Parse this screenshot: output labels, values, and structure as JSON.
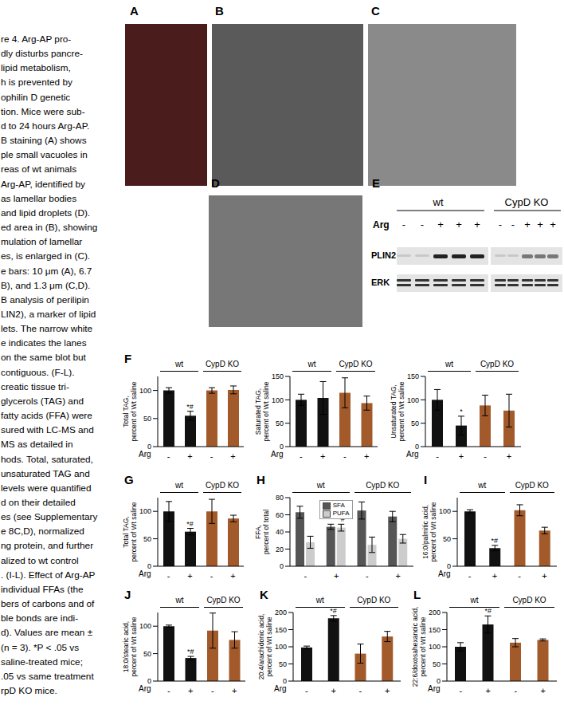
{
  "caption": [
    "re 4. Arg-AP pro-",
    "dly disturbs pancre-",
    "lipid metabolism,",
    "h is prevented by",
    "ophilin D genetic",
    "tion. Mice were sub-",
    "d to 24 hours Arg-AP.",
    "B staining (A) shows",
    "ple small vacuoles in",
    "reas of wt animals",
    "Arg-AP, identified by",
    "as lamellar bodies",
    "and lipid droplets (D).",
    "ed area in (B), showing",
    "mulation of lamellar",
    "es, is enlarged in (C).",
    "e bars: 10 μm (A), 6.7",
    "B), and 1.3 μm (C,D).",
    "B analysis of perilipin",
    "LIN2), a marker of lipid",
    "lets. The narrow white",
    "e indicates the lanes",
    "on the same blot but",
    "contiguous. (F-L).",
    "creatic tissue tri-",
    "glycerols (TAG) and",
    "fatty acids (FFA) were",
    "sured with LC-MS and",
    "MS as detailed in",
    "hods. Total, saturated,",
    "unsaturated TAG and",
    "levels were quantified",
    "d on their detailed",
    "es (see Supplementary",
    "e 8C,D), normalized",
    "ng protein, and further",
    "alized to wt control",
    ". (I-L). Effect of Arg-AP",
    "individual FFAs (the",
    "bers of carbons and of",
    "ble bonds are indi-",
    "d). Values are mean ±",
    "(n = 3). *P < .05 vs",
    "saline-treated mice;",
    ".05 vs same treatment",
    "rpD KO mice."
  ],
  "images": [
    {
      "label": "A"
    },
    {
      "label": "B"
    },
    {
      "label": "C"
    },
    {
      "label": "D"
    }
  ],
  "blot": {
    "label": "E",
    "groups": [
      "wt",
      "CypD KO"
    ],
    "x_label": "Arg",
    "lanes": [
      "-",
      "-",
      "+",
      "+",
      "+",
      "-",
      "-",
      "+",
      "+",
      "+"
    ],
    "rows": [
      "PLIN2",
      "ERK"
    ]
  },
  "chart_data": [
    {
      "type": "bar",
      "panel": "F",
      "ylabel": "Total TAG, percent of Wt saline",
      "groups": [
        "wt",
        "CypD KO"
      ],
      "x_label": "Arg",
      "categories": [
        "-",
        "+",
        "-",
        "+"
      ],
      "values": [
        100,
        55,
        100,
        101
      ],
      "errors": [
        5,
        8,
        5,
        7
      ],
      "colors": [
        "#111111",
        "#111111",
        "#a35a2b",
        "#a35a2b"
      ],
      "annotations": [
        null,
        "*#",
        null,
        null
      ],
      "ylim": [
        0,
        125
      ],
      "yticks": [
        0,
        50,
        100
      ]
    },
    {
      "type": "bar",
      "ylabel": "Saturated TAG, percent of Wt saline",
      "groups": [
        "wt",
        "CypD KO"
      ],
      "x_label": "Arg",
      "categories": [
        "-",
        "+",
        "-",
        "+"
      ],
      "values": [
        100,
        104,
        115,
        93
      ],
      "errors": [
        12,
        35,
        32,
        15
      ],
      "colors": [
        "#111111",
        "#111111",
        "#a35a2b",
        "#a35a2b"
      ],
      "ylim": [
        0,
        150
      ],
      "yticks": [
        0,
        50,
        100,
        150
      ]
    },
    {
      "type": "bar",
      "ylabel": "Unsaturated TAG, percent of Wt saline",
      "groups": [
        "wt",
        "CypD KO"
      ],
      "x_label": "Arg",
      "categories": [
        "-",
        "+",
        "-",
        "+"
      ],
      "values": [
        100,
        45,
        88,
        77
      ],
      "errors": [
        22,
        20,
        22,
        35
      ],
      "colors": [
        "#111111",
        "#111111",
        "#a35a2b",
        "#a35a2b"
      ],
      "annotations": [
        null,
        "*",
        null,
        null
      ],
      "ylim": [
        0,
        150
      ],
      "yticks": [
        0,
        50,
        100,
        150
      ]
    },
    {
      "type": "bar",
      "panel": "G",
      "ylabel": "Total TAG, percent of Wt saline",
      "groups": [
        "wt",
        "CypD KO"
      ],
      "x_label": "Arg",
      "categories": [
        "-",
        "+",
        "-",
        "+"
      ],
      "values": [
        100,
        63,
        100,
        87
      ],
      "errors": [
        18,
        6,
        22,
        6
      ],
      "colors": [
        "#111111",
        "#111111",
        "#a35a2b",
        "#a35a2b"
      ],
      "annotations": [
        null,
        "*#",
        null,
        null
      ],
      "ylim": [
        0,
        125
      ],
      "yticks": [
        0,
        50,
        100
      ]
    },
    {
      "type": "bar",
      "panel": "H",
      "ylabel": "FFA, percent of total",
      "groups": [
        "wt",
        "CypD KO"
      ],
      "categories": [
        "-",
        "+",
        "-",
        "+"
      ],
      "legend": "top",
      "series": [
        {
          "name": "SFA",
          "color": "#555555",
          "values": [
            63,
            46,
            65,
            58
          ],
          "errors": [
            7,
            3,
            10,
            6
          ]
        },
        {
          "name": "PUFA",
          "color": "#cccccc",
          "values": [
            28,
            45,
            25,
            32
          ],
          "errors": [
            7,
            4,
            9,
            5
          ],
          "annotations": [
            null,
            "*#",
            null,
            null
          ]
        }
      ],
      "ylim": [
        0,
        80
      ],
      "yticks": [
        0,
        20,
        40,
        60,
        80
      ]
    },
    {
      "type": "bar",
      "panel": "I",
      "ylabel": "16:0/palmitic acid, percent of Wt saline",
      "groups": [
        "wt",
        "CypD KO"
      ],
      "x_label": "Arg",
      "categories": [
        "-",
        "+",
        "-",
        "+"
      ],
      "values": [
        100,
        33,
        102,
        65
      ],
      "errors": [
        3,
        5,
        10,
        6
      ],
      "colors": [
        "#111111",
        "#111111",
        "#a35a2b",
        "#a35a2b"
      ],
      "annotations": [
        null,
        "*#",
        null,
        null
      ],
      "ylim": [
        0,
        125
      ],
      "yticks": [
        0,
        50,
        100
      ]
    },
    {
      "type": "bar",
      "panel": "J",
      "ylabel": "18:0/stearic acid, percent of Wt saline",
      "groups": [
        "wt",
        "CypD KO"
      ],
      "x_label": "Arg",
      "categories": [
        "-",
        "+",
        "-",
        "+"
      ],
      "values": [
        100,
        42,
        92,
        75
      ],
      "errors": [
        2,
        3,
        32,
        15
      ],
      "colors": [
        "#111111",
        "#111111",
        "#a35a2b",
        "#a35a2b"
      ],
      "annotations": [
        null,
        "*#",
        null,
        null
      ],
      "ylim": [
        0,
        125
      ],
      "yticks": [
        0,
        50,
        100
      ]
    },
    {
      "type": "bar",
      "panel": "K",
      "ylabel": "20:4/arachidonic acid, percent of Wt saline",
      "groups": [
        "wt",
        "CypD KO"
      ],
      "x_label": "Arg",
      "categories": [
        "-",
        "+",
        "-",
        "+"
      ],
      "values": [
        98,
        183,
        80,
        130
      ],
      "errors": [
        4,
        8,
        28,
        15
      ],
      "colors": [
        "#111111",
        "#111111",
        "#a35a2b",
        "#a35a2b"
      ],
      "annotations": [
        null,
        "*#",
        null,
        null
      ],
      "ylim": [
        0,
        200
      ],
      "yticks": [
        0,
        50,
        100,
        150,
        200
      ]
    },
    {
      "type": "bar",
      "panel": "L",
      "ylabel": "22:6/doxosahexanoic acid, percent of Wt saline",
      "groups": [
        "wt",
        "CypD KO"
      ],
      "x_label": "Arg",
      "categories": [
        "-",
        "+",
        "-",
        "+"
      ],
      "values": [
        100,
        165,
        112,
        120
      ],
      "errors": [
        12,
        25,
        12,
        3
      ],
      "colors": [
        "#111111",
        "#111111",
        "#a35a2b",
        "#a35a2b"
      ],
      "annotations": [
        null,
        "*#",
        null,
        null
      ],
      "ylim": [
        0,
        200
      ],
      "yticks": [
        0,
        50,
        100,
        150,
        200
      ]
    }
  ]
}
